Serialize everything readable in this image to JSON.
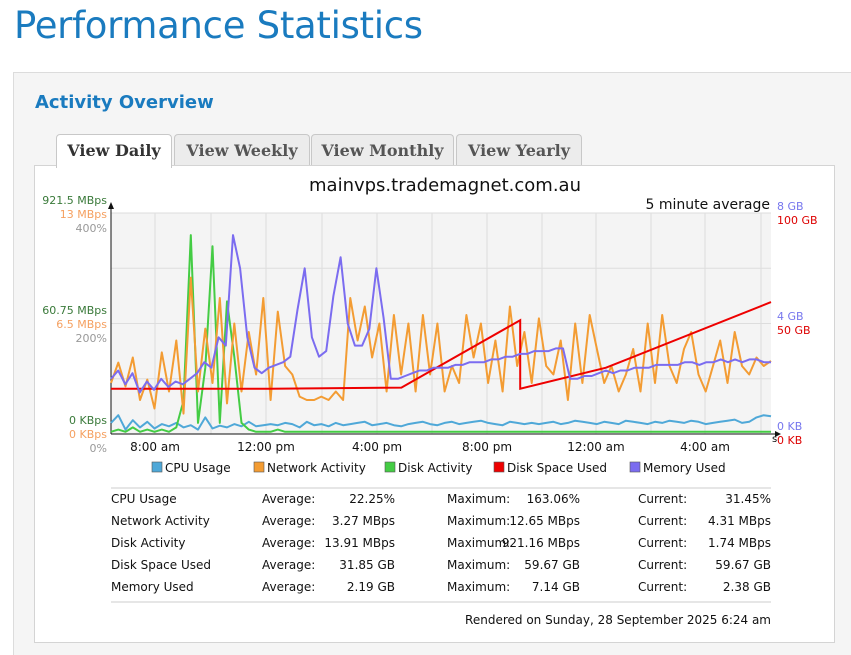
{
  "page": {
    "title": "Performance Statistics"
  },
  "panel": {
    "title": "Activity Overview"
  },
  "tabs": [
    {
      "label": "View Daily",
      "active": true
    },
    {
      "label": "View Weekly",
      "active": false
    },
    {
      "label": "View Monthly",
      "active": false
    },
    {
      "label": "View Yearly",
      "active": false
    }
  ],
  "chart_data": {
    "type": "line",
    "title": "mainvps.trademagnet.com.au",
    "subtitle": "5 minute average",
    "x_tick_labels": [
      "8:00 am",
      "12:00 pm",
      "4:00 pm",
      "8:00 pm",
      "12:00 am",
      "4:00 am"
    ],
    "x_end_marker": "s",
    "left_axes": {
      "disk": {
        "color": "#3a7a3a",
        "ticks": [
          "0 KBps",
          "60.75 MBps",
          "921.5 MBps"
        ]
      },
      "network": {
        "color": "#f5a060",
        "ticks": [
          "0 KBps",
          "6.5 MBps",
          "13 MBps"
        ]
      },
      "cpu": {
        "color": "#999999",
        "ticks": [
          "0%",
          "200%",
          "400%"
        ]
      }
    },
    "right_axes": {
      "memory": {
        "color": "#7777ee",
        "ticks": [
          "0 KB",
          "4 GB",
          "8 GB"
        ]
      },
      "disk_space": {
        "color": "#dd0000",
        "ticks": [
          "0 KB",
          "50 GB",
          "100 GB"
        ]
      }
    },
    "legend": [
      {
        "label": "CPU Usage",
        "color": "#4fa8d8"
      },
      {
        "label": "Network Activity",
        "color": "#f39c33"
      },
      {
        "label": "Disk Activity",
        "color": "#44cc44"
      },
      {
        "label": "Disk Space Used",
        "color": "#ee0000"
      },
      {
        "label": "Memory Used",
        "color": "#7b6cf0"
      }
    ],
    "series": {
      "cpu": [
        20,
        34,
        8,
        25,
        12,
        22,
        10,
        18,
        14,
        20,
        12,
        16,
        8,
        30,
        10,
        15,
        12,
        18,
        14,
        22,
        14,
        16,
        18,
        16,
        20,
        18,
        12,
        22,
        16,
        18,
        14,
        20,
        16,
        18,
        20,
        22,
        16,
        18,
        20,
        16,
        14,
        18,
        20,
        22,
        18,
        16,
        20,
        22,
        18,
        20,
        22,
        24,
        20,
        18,
        16,
        22,
        20,
        18,
        20,
        18,
        20,
        22,
        18,
        20,
        24,
        22,
        20,
        18,
        22,
        20,
        18,
        24,
        22,
        20,
        18,
        22,
        20,
        24,
        22,
        20,
        24,
        22,
        18,
        20,
        22,
        24,
        26,
        20,
        22,
        30,
        34,
        32
      ],
      "network": [
        3.0,
        4.2,
        2.8,
        4.5,
        2.0,
        3.2,
        1.5,
        4.8,
        2.5,
        5.5,
        1.2,
        9.2,
        2.5,
        6.2,
        3.0,
        8.0,
        1.8,
        6.5,
        2.5,
        6.0,
        3.5,
        8.0,
        2.0,
        7.2,
        4.0,
        3.5,
        2.2,
        2.0,
        2.0,
        2.2,
        2.0,
        2.5,
        2.0,
        8.0,
        5.5,
        7.5,
        4.5,
        6.5,
        2.5,
        7.0,
        3.5,
        6.5,
        2.5,
        7.0,
        3.5,
        6.5,
        2.5,
        4.0,
        3.0,
        7.0,
        4.5,
        6.5,
        3.0,
        5.5,
        2.5,
        7.5,
        4.0,
        6.0,
        3.0,
        6.8,
        4.0,
        3.5,
        5.5,
        2.0,
        6.5,
        3.0,
        7.0,
        5.0,
        3.0,
        4.0,
        2.5,
        3.5,
        5.0,
        2.5,
        6.5,
        3.0,
        7.0,
        4.0,
        3.0,
        5.0,
        6.0,
        3.5,
        2.5,
        4.0,
        5.5,
        3.0,
        6.0,
        4.0,
        3.5,
        4.5,
        4.0,
        4.3
      ],
      "disk": [
        0.1,
        0.2,
        0.1,
        0.3,
        0.1,
        0.2,
        0.1,
        0.2,
        0.1,
        0.3,
        1.5,
        9.0,
        0.5,
        3.0,
        8.5,
        0.5,
        6.0,
        3.5,
        0.5,
        0.2,
        0.1,
        0.1,
        0.1,
        0.2,
        0.1,
        0.1,
        0.1,
        0.1,
        0.1,
        0.1,
        0.1,
        0.1,
        0.1,
        0.1,
        0.1,
        0.1,
        0.1,
        0.1,
        0.1,
        0.1,
        0.1,
        0.1,
        0.1,
        0.1,
        0.1,
        0.1,
        0.1,
        0.1,
        0.1,
        0.1,
        0.1,
        0.1,
        0.1,
        0.1,
        0.1,
        0.1,
        0.1,
        0.1,
        0.1,
        0.1,
        0.1,
        0.1,
        0.1,
        0.1,
        0.1,
        0.1,
        0.1,
        0.1,
        0.1,
        0.1,
        0.1,
        0.1,
        0.1,
        0.1,
        0.1,
        0.1,
        0.1,
        0.1,
        0.1,
        0.1,
        0.1,
        0.1,
        0.1,
        0.1,
        0.1,
        0.1,
        0.1,
        0.1,
        0.1,
        0.1,
        0.1,
        0.1
      ],
      "disk_space": {
        "x": [
          0,
          0.24,
          0.24,
          0.44,
          0.62,
          0.62,
          0.75,
          1.0
        ],
        "y": [
          20.5,
          20.5,
          20.5,
          21,
          51.5,
          20.5,
          30,
          59.7
        ]
      },
      "memory": [
        2.0,
        2.3,
        1.8,
        2.2,
        1.5,
        1.9,
        1.6,
        2.0,
        1.7,
        1.9,
        1.8,
        2.0,
        2.2,
        2.6,
        2.4,
        3.5,
        3.2,
        7.2,
        6.0,
        3.5,
        2.4,
        2.2,
        2.4,
        2.5,
        2.6,
        2.8,
        4.5,
        6.0,
        3.5,
        2.8,
        3.0,
        5.0,
        6.4,
        4.0,
        3.2,
        3.2,
        3.8,
        6.0,
        4.2,
        2.0,
        2.0,
        2.1,
        2.2,
        2.3,
        2.3,
        2.4,
        2.4,
        2.4,
        2.5,
        2.5,
        2.6,
        2.6,
        2.6,
        2.7,
        2.7,
        2.8,
        2.8,
        2.9,
        2.9,
        3.0,
        3.0,
        3.0,
        3.1,
        3.1,
        2.0,
        2.0,
        2.1,
        2.1,
        2.2,
        2.3,
        2.2,
        2.3,
        2.3,
        2.4,
        2.4,
        2.4,
        2.5,
        2.5,
        2.5,
        2.5,
        2.6,
        2.6,
        2.5,
        2.6,
        2.6,
        2.7,
        2.6,
        2.7,
        2.6,
        2.7,
        2.7,
        2.6,
        2.6
      ]
    }
  },
  "stats": {
    "avg_label": "Average:",
    "max_label": "Maximum:",
    "cur_label": "Current:",
    "rows": [
      {
        "name": "CPU Usage",
        "avg": "22.25%",
        "max": "163.06%",
        "cur": "31.45%"
      },
      {
        "name": "Network Activity",
        "avg": "3.27 MBps",
        "max": "12.65 MBps",
        "cur": "4.31 MBps"
      },
      {
        "name": "Disk Activity",
        "avg": "13.91 MBps",
        "max": "921.16 MBps",
        "cur": "1.74 MBps"
      },
      {
        "name": "Disk Space Used",
        "avg": "31.85 GB",
        "max": "59.67 GB",
        "cur": "59.67 GB"
      },
      {
        "name": "Memory Used",
        "avg": "2.19 GB",
        "max": "7.14 GB",
        "cur": "2.38 GB"
      }
    ],
    "rendered": "Rendered on Sunday, 28 September 2025 6:24 am"
  }
}
